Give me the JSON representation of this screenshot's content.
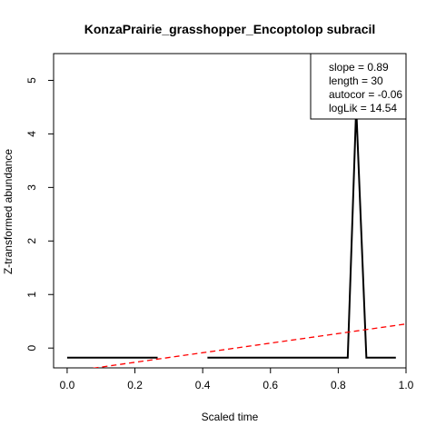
{
  "chart_data": {
    "type": "line",
    "title": "KonzaPrairie_grasshopper_Encoptolop subracil",
    "xlabel": "Scaled time",
    "ylabel": "Z-transformed abundance",
    "xlim": [
      -0.04,
      1.0
    ],
    "ylim": [
      -0.37,
      5.5
    ],
    "x_ticks": [
      0.0,
      0.2,
      0.4,
      0.6,
      0.8,
      1.0
    ],
    "x_tick_labels": [
      "0.0",
      "0.2",
      "0.4",
      "0.6",
      "0.8",
      "1.0"
    ],
    "y_ticks": [
      0,
      1,
      2,
      3,
      4,
      5
    ],
    "y_tick_labels": [
      "0",
      "1",
      "2",
      "3",
      "4",
      "5"
    ],
    "grid": false,
    "series": [
      {
        "style": "solid",
        "color": "#000000",
        "segments": [
          {
            "x": [
              0.0,
              0.267
            ],
            "y": [
              -0.18,
              -0.18
            ]
          },
          {
            "x": [
              0.414,
              0.828,
              0.853,
              0.883,
              0.97
            ],
            "y": [
              -0.18,
              -0.18,
              4.5,
              -0.18,
              -0.18
            ]
          }
        ]
      },
      {
        "style": "dashed",
        "color": "#ff0000",
        "x": [
          0.05,
          1.0
        ],
        "y": [
          -0.4,
          0.45
        ]
      }
    ],
    "legend": {
      "position": "top-right",
      "lines": [
        "slope = 0.89",
        "length = 30",
        "autocor = -0.06",
        "logLik = 14.54"
      ]
    }
  }
}
